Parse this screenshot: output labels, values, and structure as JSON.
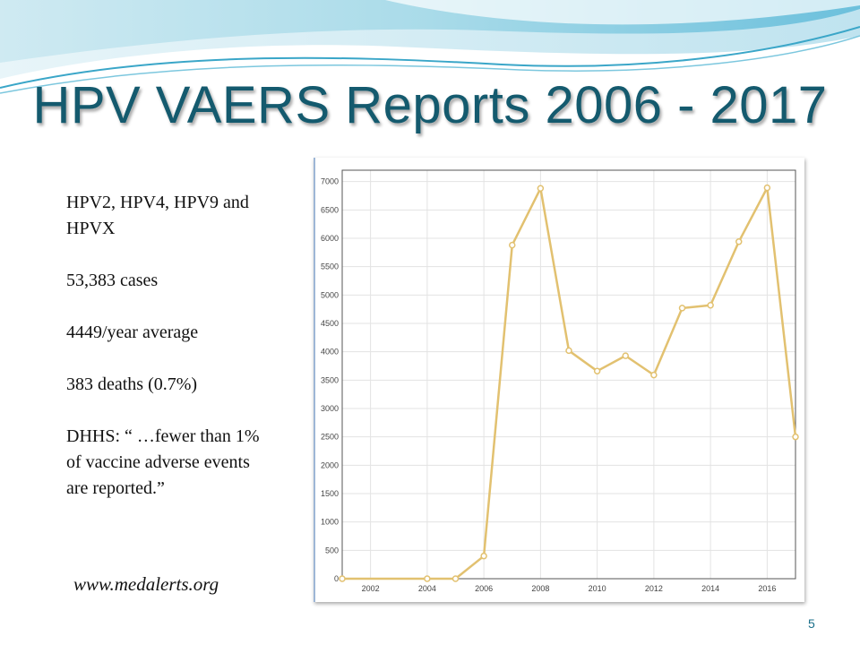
{
  "slide": {
    "title": "HPV VAERS Reports 2006 - 2017",
    "left_text": [
      "HPV2, HPV4, HPV9 and HPVX",
      "53,383 cases",
      "4449/year average",
      "383 deaths (0.7%)",
      "DHHS: “ …fewer than 1% of vaccine adverse events are reported.”"
    ],
    "website": "www.medalerts.org",
    "page_number": "5"
  },
  "colors": {
    "title": "#145a6e",
    "line": "#e2c170",
    "wave_light": "#bfe4ee",
    "wave_dark": "#3aa6c8"
  },
  "chart_data": {
    "type": "line",
    "title": "",
    "xlabel": "",
    "ylabel": "",
    "x": [
      2001,
      2002,
      2003,
      2004,
      2005,
      2006,
      2007,
      2008,
      2009,
      2010,
      2011,
      2012,
      2013,
      2014,
      2015,
      2016,
      2017
    ],
    "marker_x": [
      2001,
      2004,
      2005,
      2006,
      2007,
      2008,
      2009,
      2010,
      2011,
      2012,
      2013,
      2014,
      2015,
      2016,
      2017
    ],
    "series": [
      {
        "values": [
          0,
          0,
          0,
          0,
          0,
          400,
          5880,
          6880,
          4020,
          3660,
          3930,
          3590,
          4770,
          4820,
          5940,
          6890,
          2500
        ]
      }
    ],
    "xlim": [
      2001,
      2017
    ],
    "ylim": [
      0,
      7200
    ],
    "x_ticks": [
      "2002",
      "2004",
      "2006",
      "2008",
      "2010",
      "2012",
      "2014",
      "2016"
    ],
    "x_tick_values": [
      2002,
      2004,
      2006,
      2008,
      2010,
      2012,
      2014,
      2016
    ],
    "y_ticks": [
      "0",
      "500",
      "1000",
      "1500",
      "2000",
      "2500",
      "3000",
      "3500",
      "4000",
      "4500",
      "5000",
      "5500",
      "6000",
      "6500",
      "7000"
    ],
    "y_tick_values": [
      0,
      500,
      1000,
      1500,
      2000,
      2500,
      3000,
      3500,
      4000,
      4500,
      5000,
      5500,
      6000,
      6500,
      7000
    ],
    "grid": true,
    "legend": "none"
  }
}
